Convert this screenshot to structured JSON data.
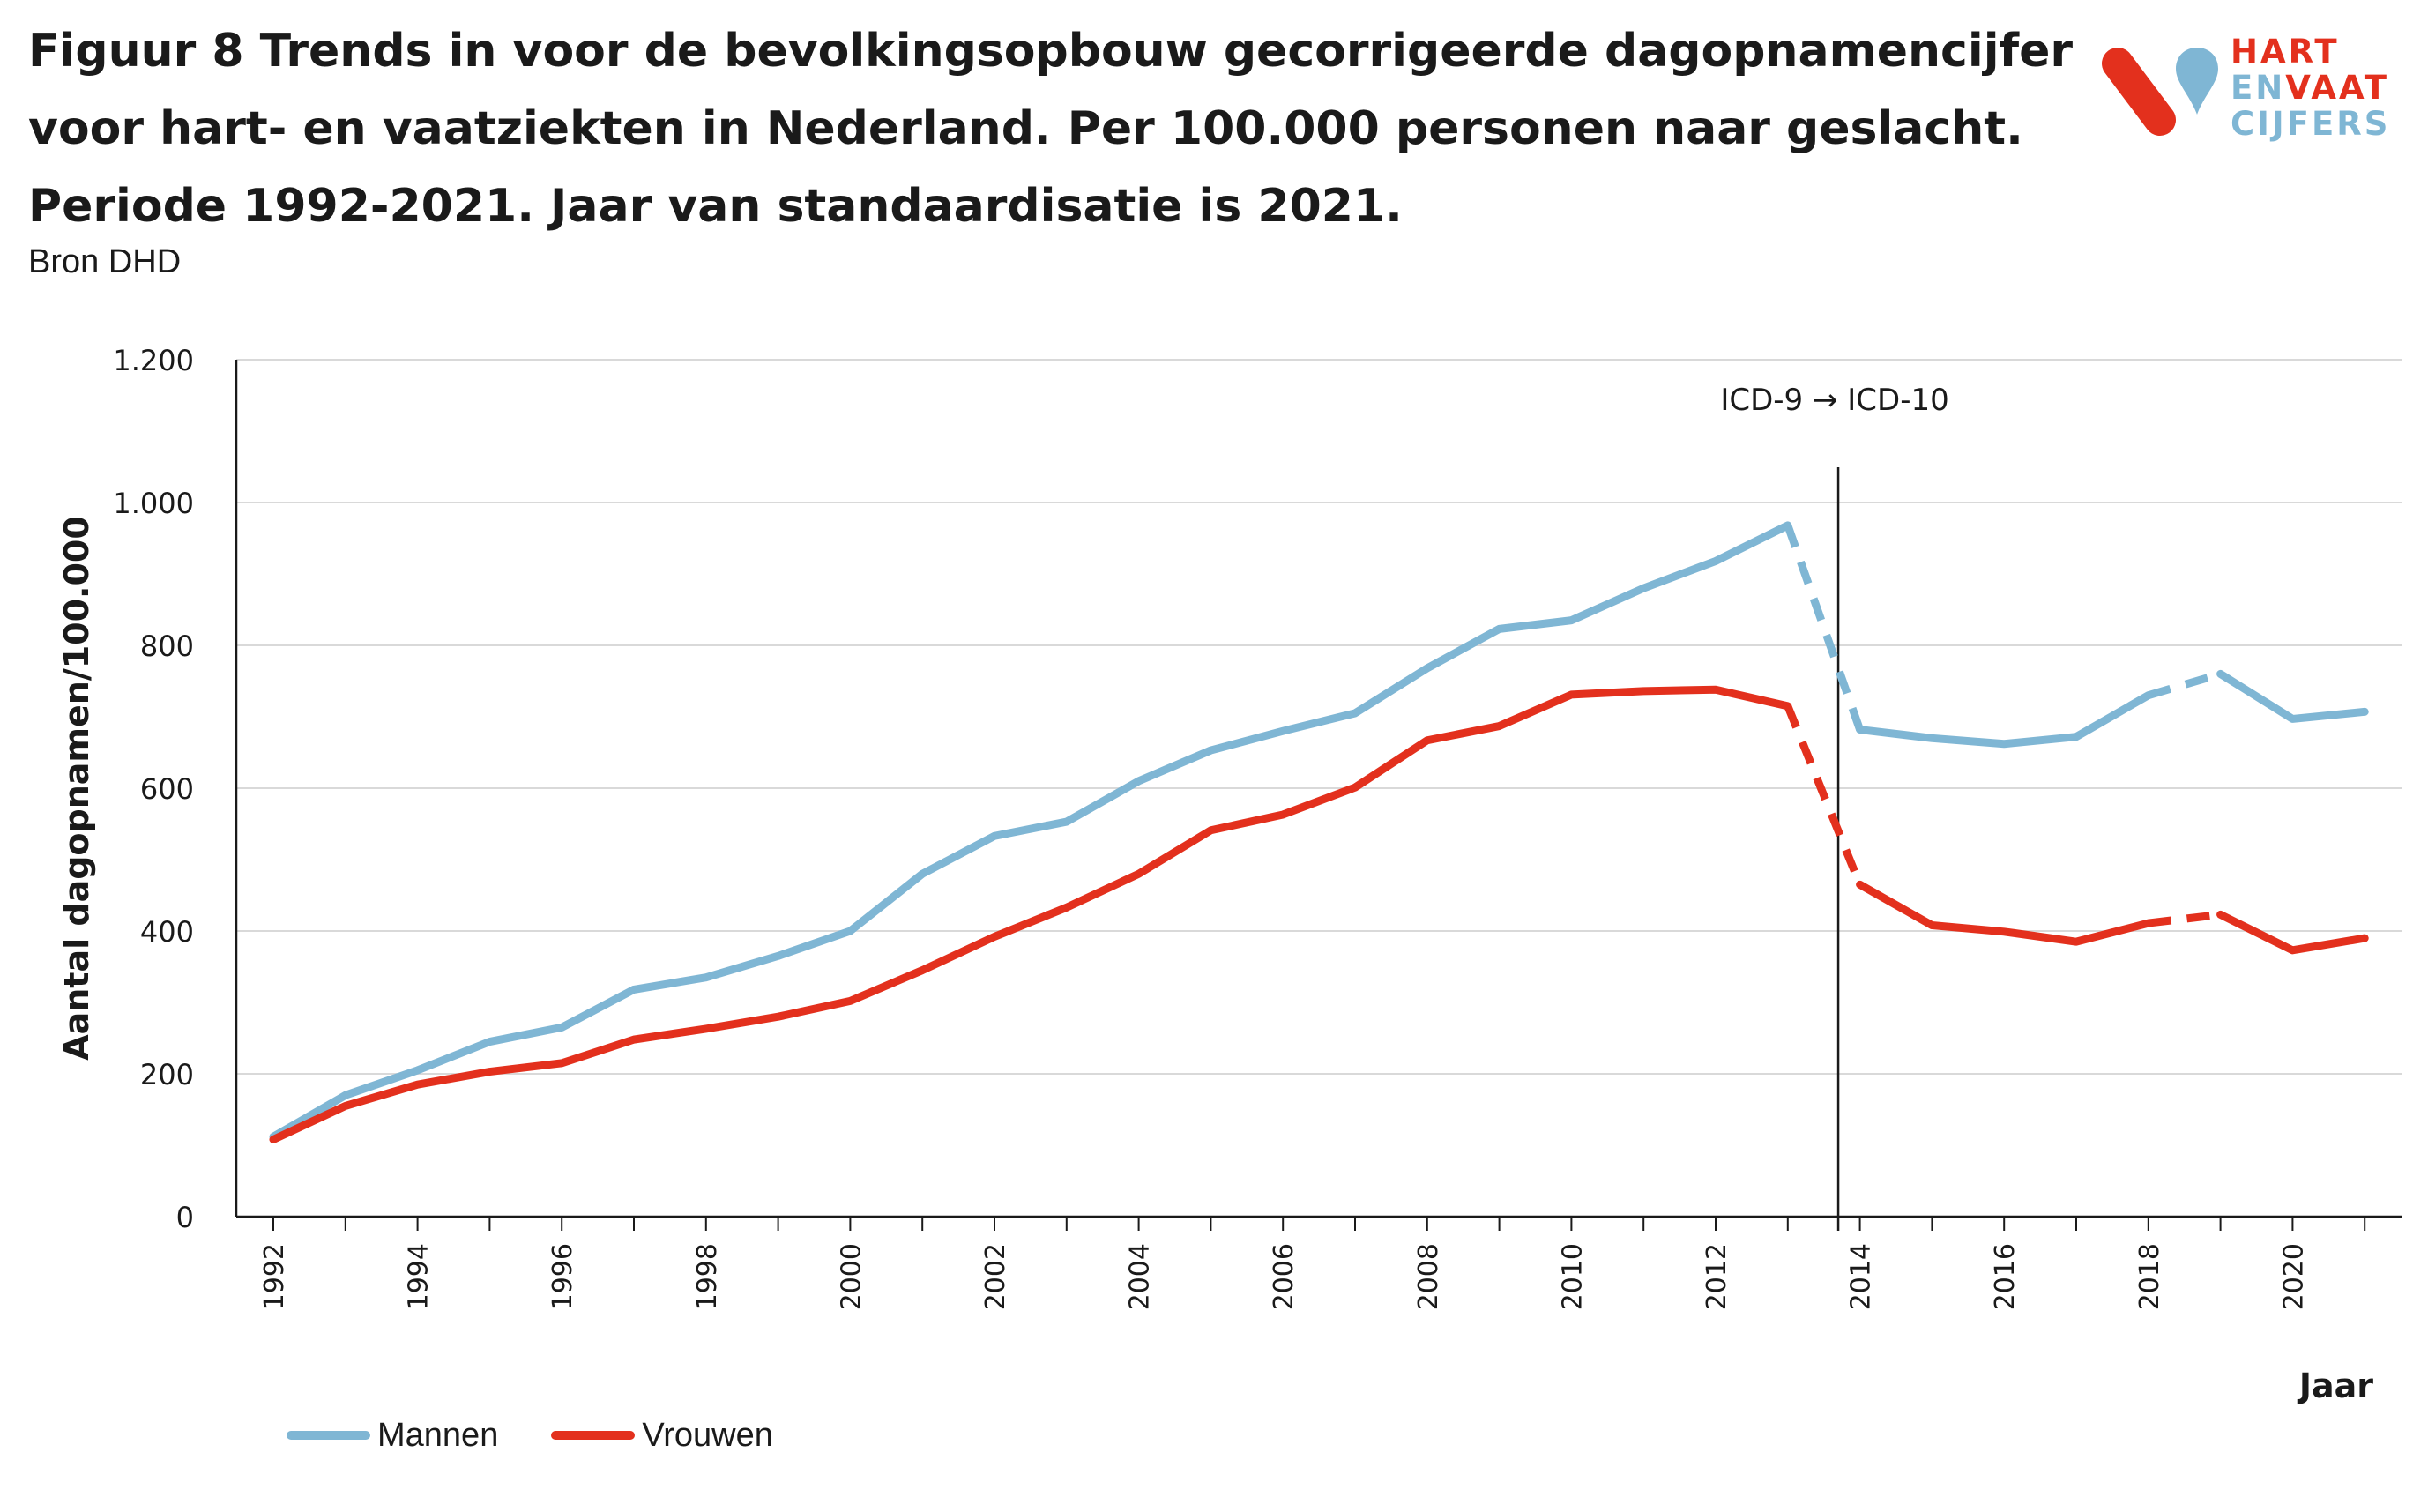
{
  "header": {
    "title_lines": [
      "Figuur 8 Trends in voor de bevolkingsopbouw gecorrigeerde dagopnamencijfer",
      "voor hart- en vaatziekten in Nederland. Per 100.000 personen naar geslacht.",
      "Periode 1992-2021. Jaar van standaardisatie is 2021."
    ],
    "source": "Bron DHD"
  },
  "logo": {
    "line1": "HART",
    "line2a": "EN",
    "line2b": "VAAT",
    "line3": "CIJFERS"
  },
  "chart_data": {
    "type": "line",
    "xlabel": "Jaar",
    "ylabel": "Aantal dagopnamen/100.000",
    "ylim": [
      0,
      1200
    ],
    "yticks": [
      0,
      200,
      400,
      600,
      800,
      1000,
      1200
    ],
    "ytick_labels": [
      "0",
      "200",
      "400",
      "600",
      "800",
      "1.000",
      "1.200"
    ],
    "xticks": [
      1992,
      1994,
      1996,
      1998,
      2000,
      2002,
      2004,
      2006,
      2008,
      2010,
      2012,
      2014,
      2016,
      2018,
      2020
    ],
    "x": [
      1992,
      1993,
      1994,
      1995,
      1996,
      1997,
      1998,
      1999,
      2000,
      2001,
      2002,
      2003,
      2004,
      2005,
      2006,
      2007,
      2008,
      2009,
      2010,
      2011,
      2012,
      2013,
      2014,
      2015,
      2016,
      2017,
      2018,
      2019,
      2020,
      2021
    ],
    "grid": "horizontal",
    "annotation": {
      "text": "ICD-9 → ICD-10",
      "x": 2013.7
    },
    "dashed_segments": [
      [
        2013,
        2014
      ],
      [
        2018,
        2019
      ]
    ],
    "legend": "bottom-left",
    "series": [
      {
        "name": "Mannen",
        "color": "#7fb6d4",
        "values": [
          112,
          170,
          205,
          245,
          265,
          318,
          335,
          365,
          400,
          480,
          533,
          553,
          610,
          653,
          680,
          705,
          768,
          823,
          835,
          880,
          918,
          968,
          682,
          670,
          662,
          672,
          730,
          760,
          697,
          707
        ]
      },
      {
        "name": "Vrouwen",
        "color": "#e3301d",
        "values": [
          108,
          155,
          185,
          203,
          215,
          248,
          263,
          280,
          302,
          345,
          392,
          433,
          480,
          541,
          563,
          601,
          667,
          687,
          731,
          736,
          738,
          715,
          465,
          408,
          399,
          385,
          411,
          423,
          373,
          390
        ]
      }
    ]
  }
}
